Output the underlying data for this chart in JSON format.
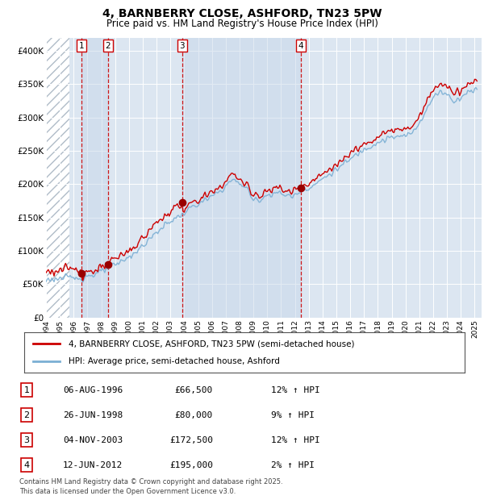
{
  "title1": "4, BARNBERRY CLOSE, ASHFORD, TN23 5PW",
  "title2": "Price paid vs. HM Land Registry's House Price Index (HPI)",
  "ylim": [
    0,
    420000
  ],
  "yticks": [
    0,
    50000,
    100000,
    150000,
    200000,
    250000,
    300000,
    350000,
    400000
  ],
  "ytick_labels": [
    "£0",
    "£50K",
    "£100K",
    "£150K",
    "£200K",
    "£250K",
    "£300K",
    "£350K",
    "£400K"
  ],
  "xlim_start": 1994.0,
  "xlim_end": 2025.5,
  "background_color": "#ffffff",
  "plot_bg_color": "#dce6f1",
  "grid_color": "#ffffff",
  "sale_color": "#cc0000",
  "hpi_color": "#7bafd4",
  "sale_dates": [
    1996.59,
    1998.48,
    2003.84,
    2012.44
  ],
  "sale_prices": [
    66500,
    80000,
    172500,
    195000
  ],
  "sale_labels": [
    "1",
    "2",
    "3",
    "4"
  ],
  "legend_sale_label": "4, BARNBERRY CLOSE, ASHFORD, TN23 5PW (semi-detached house)",
  "legend_hpi_label": "HPI: Average price, semi-detached house, Ashford",
  "table_entries": [
    {
      "num": "1",
      "date": "06-AUG-1996",
      "price": "£66,500",
      "change": "12% ↑ HPI"
    },
    {
      "num": "2",
      "date": "26-JUN-1998",
      "price": "£80,000",
      "change": "9% ↑ HPI"
    },
    {
      "num": "3",
      "date": "04-NOV-2003",
      "price": "£172,500",
      "change": "12% ↑ HPI"
    },
    {
      "num": "4",
      "date": "12-JUN-2012",
      "price": "£195,000",
      "change": "2% ↑ HPI"
    }
  ],
  "footnote": "Contains HM Land Registry data © Crown copyright and database right 2025.\nThis data is licensed under the Open Government Licence v3.0.",
  "vline_color": "#cc0000",
  "hatch_end": 1995.7
}
